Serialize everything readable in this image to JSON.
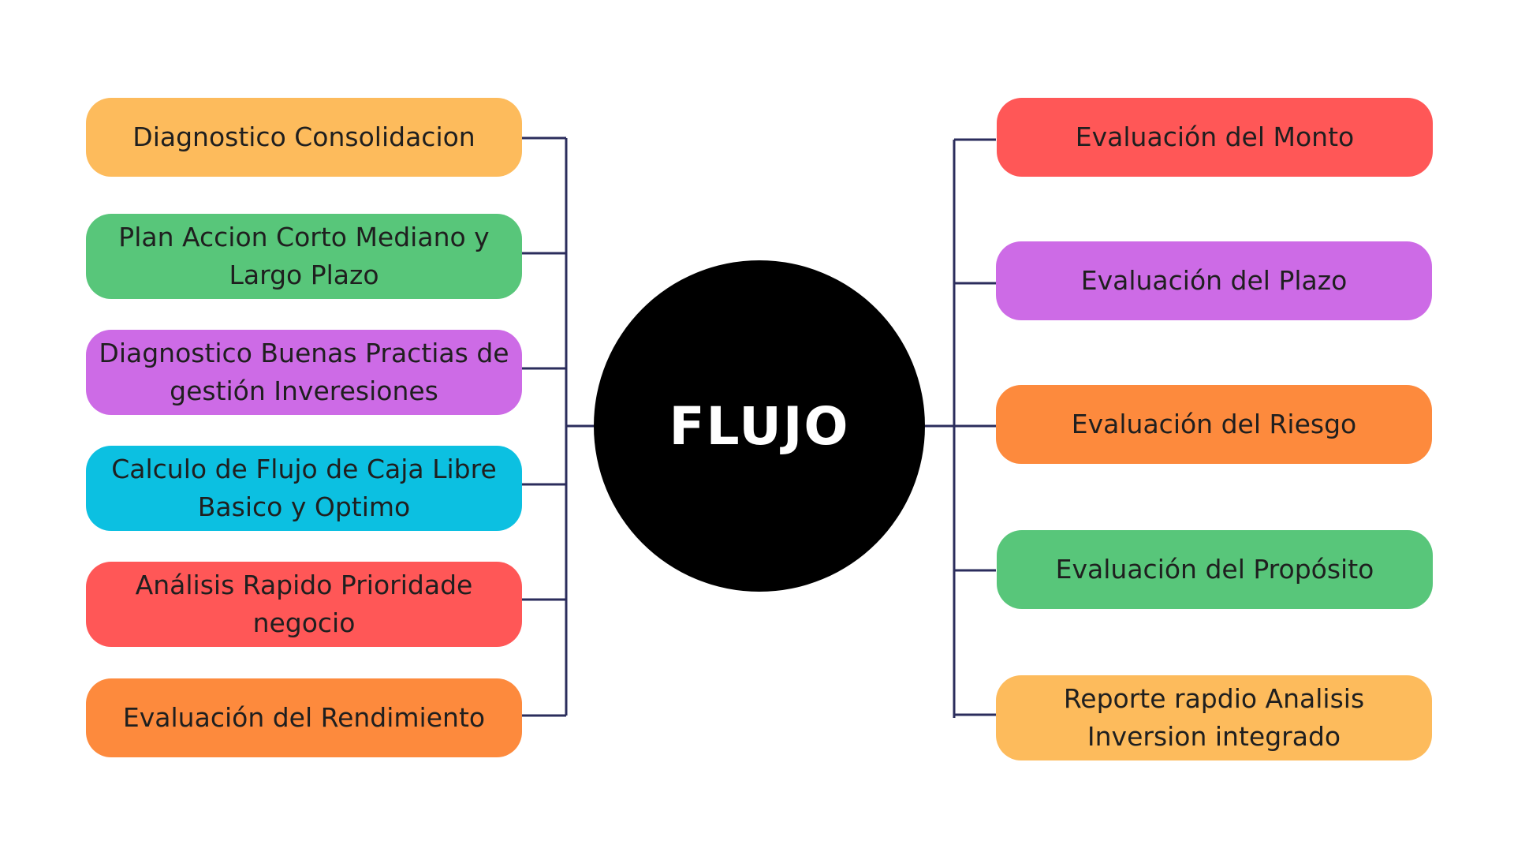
{
  "center": {
    "label": "FLUJO"
  },
  "left_nodes": [
    {
      "label": "Diagnostico Consolidacion",
      "color": "#fdbb5c"
    },
    {
      "label": "Plan Accion Corto Mediano y Largo Plazo",
      "color": "#58c67a"
    },
    {
      "label": "Diagnostico Buenas Practias de gestión Inveresiones",
      "color": "#cd6be6"
    },
    {
      "label": "Calculo de Flujo de Caja Libre Basico y Optimo",
      "color": "#0cc0e1"
    },
    {
      "label": "Análisis Rapido Prioridade negocio",
      "color": "#ff5757"
    },
    {
      "label": "Evaluación del Rendimiento",
      "color": "#fd8a3d"
    }
  ],
  "right_nodes": [
    {
      "label": "Evaluación del Monto",
      "color": "#ff5757"
    },
    {
      "label": "Evaluación del Plazo",
      "color": "#cd6be6"
    },
    {
      "label": "Evaluación del Riesgo",
      "color": "#fd8a3d"
    },
    {
      "label": "Evaluación del Propósito",
      "color": "#58c67a"
    },
    {
      "label": "Reporte rapdio Analisis Inversion integrado",
      "color": "#fdbb5c"
    }
  ],
  "connector_color": "#2b2d5c"
}
